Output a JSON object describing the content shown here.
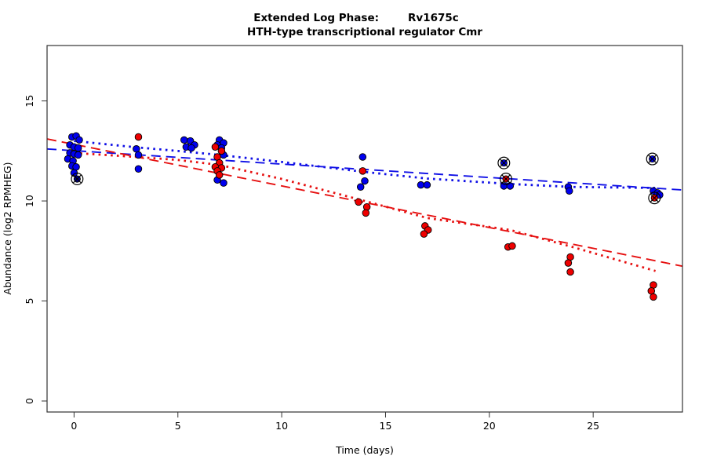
{
  "chart_data": {
    "type": "scatter",
    "title_left": "Extended Log Phase:",
    "title_gene": "Rv1675c",
    "subtitle": "HTH-type transcriptional regulator Cmr",
    "xlabel": "Time  (days)",
    "ylabel": "Abundance  (log2 RPMHEG)",
    "xlim": [
      -1.3,
      29.3
    ],
    "ylim": [
      -0.55,
      17.77
    ],
    "x_ticks": [
      0,
      5,
      10,
      15,
      20,
      25
    ],
    "y_ticks": [
      0,
      5,
      10,
      15
    ],
    "grid": false,
    "legend": "none",
    "frame_color": "#333333",
    "series": [
      {
        "name": "condition-blue",
        "marker": "filled-circle",
        "color": "#0000EE",
        "points": [
          [
            -0.1,
            13.2
          ],
          [
            0.1,
            13.25
          ],
          [
            0.25,
            13.05
          ],
          [
            -0.2,
            12.8
          ],
          [
            0.0,
            12.7
          ],
          [
            0.2,
            12.65
          ],
          [
            -0.2,
            12.4
          ],
          [
            0.0,
            12.35
          ],
          [
            0.2,
            12.3
          ],
          [
            -0.3,
            12.1
          ],
          [
            -0.05,
            12.0
          ],
          [
            -0.1,
            11.75
          ],
          [
            0.1,
            11.7
          ],
          [
            0.0,
            11.4
          ],
          [
            3.0,
            12.6
          ],
          [
            3.1,
            12.3
          ],
          [
            3.1,
            11.6
          ],
          [
            5.3,
            13.05
          ],
          [
            5.6,
            13.0
          ],
          [
            5.8,
            12.8
          ],
          [
            5.4,
            12.7
          ],
          [
            5.65,
            12.65
          ],
          [
            7.0,
            13.05
          ],
          [
            7.2,
            12.9
          ],
          [
            6.9,
            12.8
          ],
          [
            7.1,
            12.65
          ],
          [
            7.2,
            12.3
          ],
          [
            6.9,
            11.05
          ],
          [
            7.2,
            10.9
          ],
          [
            13.9,
            12.2
          ],
          [
            14.0,
            11.0
          ],
          [
            13.8,
            10.7
          ],
          [
            16.7,
            10.8
          ],
          [
            17.0,
            10.8
          ],
          [
            20.7,
            10.75
          ],
          [
            21.0,
            10.75
          ],
          [
            23.8,
            10.7
          ],
          [
            23.85,
            10.5
          ],
          [
            27.9,
            10.5
          ],
          [
            28.1,
            10.4
          ],
          [
            28.2,
            10.3
          ]
        ]
      },
      {
        "name": "condition-red",
        "marker": "filled-circle",
        "color": "#EE0000",
        "points": [
          [
            3.1,
            13.2
          ],
          [
            6.8,
            12.7
          ],
          [
            7.1,
            12.5
          ],
          [
            6.9,
            12.2
          ],
          [
            7.0,
            11.9
          ],
          [
            6.8,
            11.7
          ],
          [
            7.1,
            11.65
          ],
          [
            6.9,
            11.5
          ],
          [
            7.0,
            11.3
          ],
          [
            13.9,
            11.5
          ],
          [
            13.7,
            9.95
          ],
          [
            14.1,
            9.7
          ],
          [
            14.05,
            9.4
          ],
          [
            16.9,
            8.75
          ],
          [
            17.05,
            8.55
          ],
          [
            16.85,
            8.35
          ],
          [
            20.9,
            7.7
          ],
          [
            21.1,
            7.75
          ],
          [
            23.9,
            7.2
          ],
          [
            23.8,
            6.9
          ],
          [
            23.9,
            6.45
          ],
          [
            27.9,
            5.8
          ],
          [
            27.8,
            5.5
          ],
          [
            27.9,
            5.2
          ]
        ]
      },
      {
        "name": "flagged-outliers",
        "marker": "circle-x",
        "outline": "#000000",
        "points": [
          [
            0.15,
            11.1,
            "#00008B"
          ],
          [
            20.7,
            11.9,
            "#0000EE"
          ],
          [
            20.8,
            11.1,
            "#EE0000"
          ],
          [
            27.85,
            12.1,
            "#0000EE"
          ],
          [
            27.95,
            10.15,
            "#EE0000"
          ]
        ]
      }
    ],
    "fit_lines": [
      {
        "name": "blue-linear-fit",
        "color": "#1010E6",
        "dash": "longdash",
        "points": [
          [
            -1.3,
            12.6
          ],
          [
            29.3,
            10.55
          ]
        ]
      },
      {
        "name": "red-linear-fit",
        "color": "#E61010",
        "dash": "longdash",
        "points": [
          [
            -1.3,
            13.1
          ],
          [
            29.3,
            6.74
          ]
        ]
      },
      {
        "name": "blue-smooth-fit",
        "color": "#1010E6",
        "dash": "dotted",
        "points": [
          [
            0,
            13.0
          ],
          [
            3,
            12.68
          ],
          [
            5,
            12.5
          ],
          [
            7,
            12.3
          ],
          [
            10,
            11.95
          ],
          [
            14,
            11.45
          ],
          [
            17,
            11.12
          ],
          [
            21,
            10.85
          ],
          [
            24,
            10.7
          ],
          [
            28,
            10.65
          ]
        ]
      },
      {
        "name": "red-smooth-fit",
        "color": "#E61010",
        "dash": "dotted",
        "points": [
          [
            0,
            12.4
          ],
          [
            3,
            12.2
          ],
          [
            5,
            12.05
          ],
          [
            7,
            11.8
          ],
          [
            10,
            11.1
          ],
          [
            14,
            10.0
          ],
          [
            17,
            9.15
          ],
          [
            21,
            8.55
          ],
          [
            24,
            7.7
          ],
          [
            28,
            6.5
          ]
        ]
      }
    ]
  }
}
